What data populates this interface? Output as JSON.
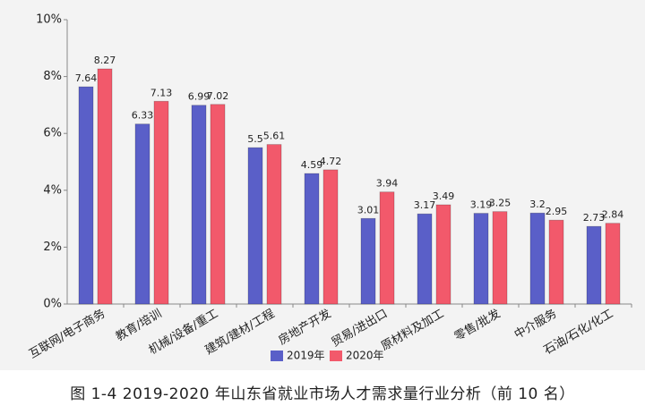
{
  "chart_data": {
    "type": "bar",
    "caption": "图 1-4 2019-2020 年山东省就业市场人才需求量行业分析（前 10 名）",
    "categories": [
      "互联网/电子商务",
      "教育/培训",
      "机械/设备/重工",
      "建筑/建材/工程",
      "房地产开发",
      "贸易/进出口",
      "原材料及加工",
      "零售/批发",
      "中介服务",
      "石油/石化/化工"
    ],
    "series": [
      {
        "name": "2019年",
        "color": "#5a5fc8",
        "values": [
          7.64,
          6.33,
          6.99,
          5.5,
          4.59,
          3.01,
          3.17,
          3.19,
          3.2,
          2.73
        ]
      },
      {
        "name": "2020年",
        "color": "#f2596b",
        "values": [
          8.27,
          7.13,
          7.02,
          5.61,
          4.72,
          3.94,
          3.49,
          3.25,
          2.95,
          2.84
        ]
      }
    ],
    "ylim": [
      0,
      10
    ],
    "yticks": [
      {
        "value": 0,
        "label": "0%"
      },
      {
        "value": 2,
        "label": "2%"
      },
      {
        "value": 4,
        "label": "4%"
      },
      {
        "value": 6,
        "label": "6%"
      },
      {
        "value": 8,
        "label": "8%"
      },
      {
        "value": 10,
        "label": "10%"
      }
    ],
    "grid": false,
    "legend": "bottom"
  }
}
